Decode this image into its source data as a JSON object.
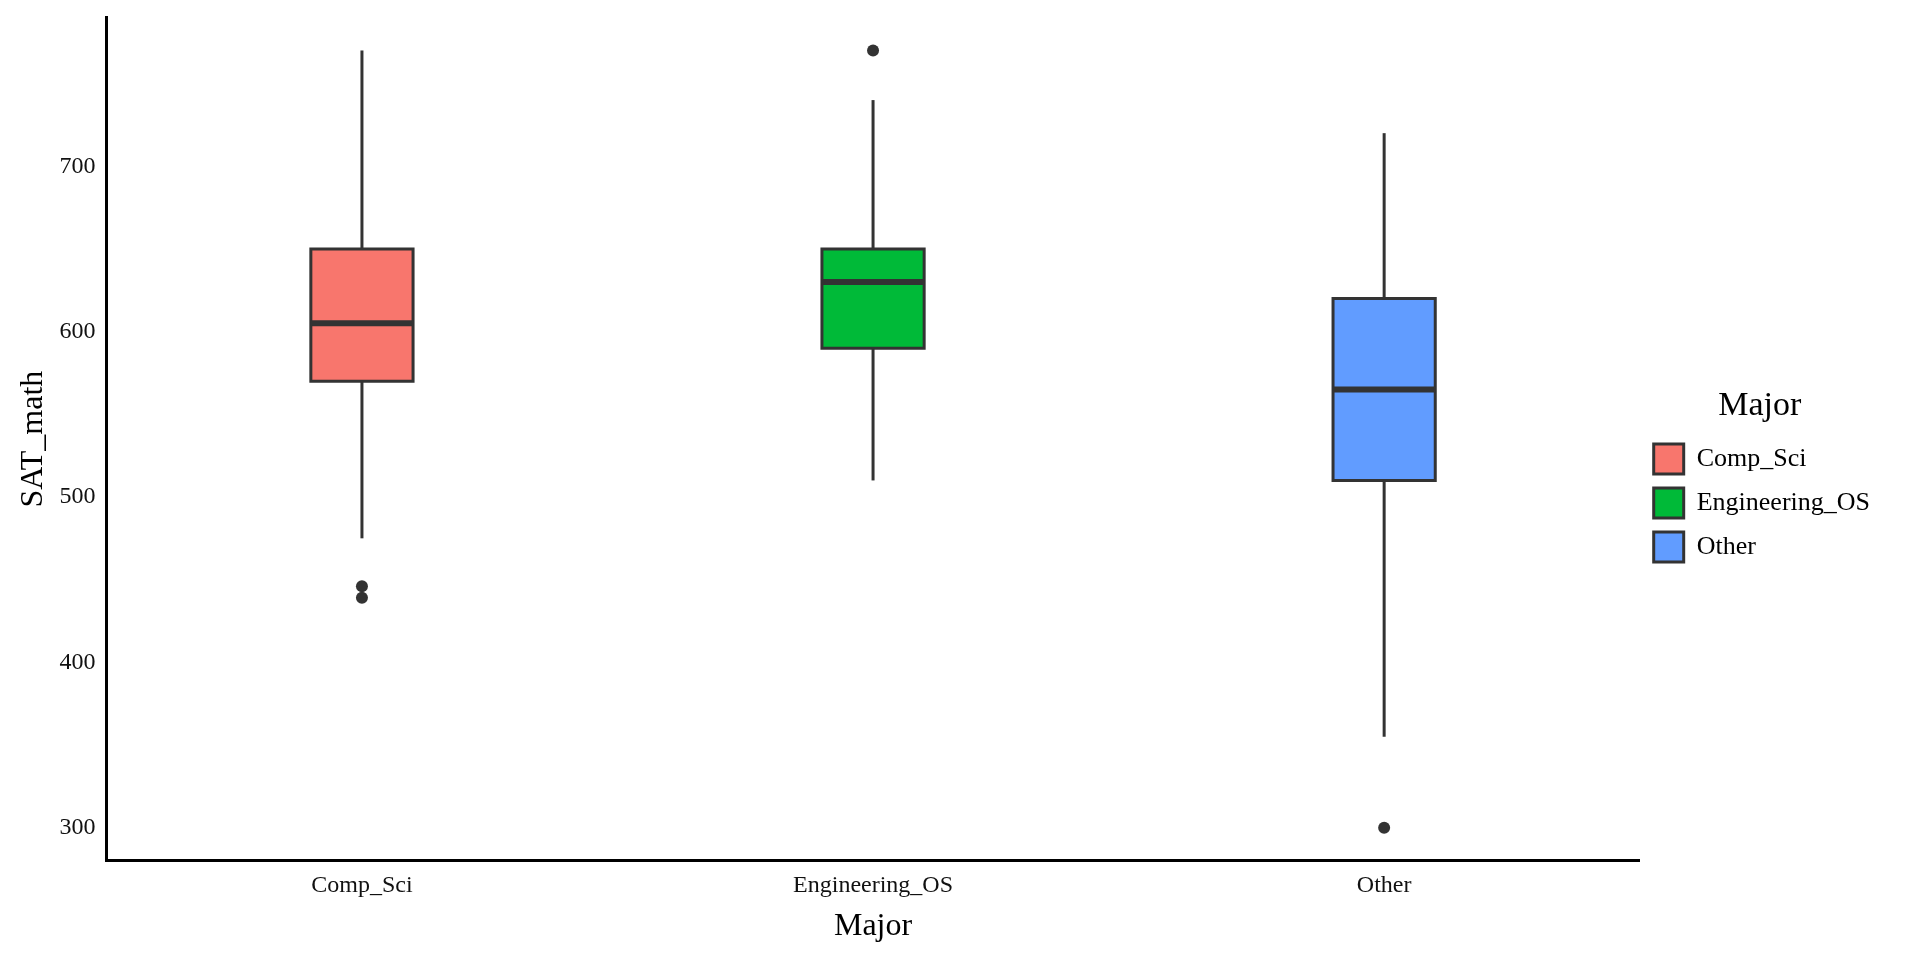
{
  "chart_data": {
    "type": "box",
    "xlabel": "Major",
    "ylabel": "SAT_math",
    "legend_title": "Major",
    "legend": "right",
    "grid": false,
    "categories": [
      "Comp_Sci",
      "Engineering_OS",
      "Other"
    ],
    "series": [
      {
        "name": "Comp_Sci",
        "color": "#f8766d",
        "boxes": [
          {
            "low": 475,
            "q1": 570,
            "median": 605,
            "q3": 650,
            "high": 770,
            "outliers": [
              446,
              439
            ]
          },
          null,
          null
        ]
      },
      {
        "name": "Engineering_OS",
        "color": "#00ba38",
        "boxes": [
          null,
          {
            "low": 510,
            "q1": 590,
            "median": 630,
            "q3": 650,
            "high": 740,
            "outliers": [
              770
            ]
          },
          null
        ]
      },
      {
        "name": "Other",
        "color": "#619cff",
        "boxes": [
          null,
          null,
          {
            "low": 355,
            "q1": 510,
            "median": 565,
            "q3": 620,
            "high": 720,
            "outliers": [
              300
            ]
          }
        ]
      }
    ],
    "ylim": [
      280,
      790
    ],
    "yticks": [
      300,
      400,
      500,
      600,
      700
    ]
  }
}
